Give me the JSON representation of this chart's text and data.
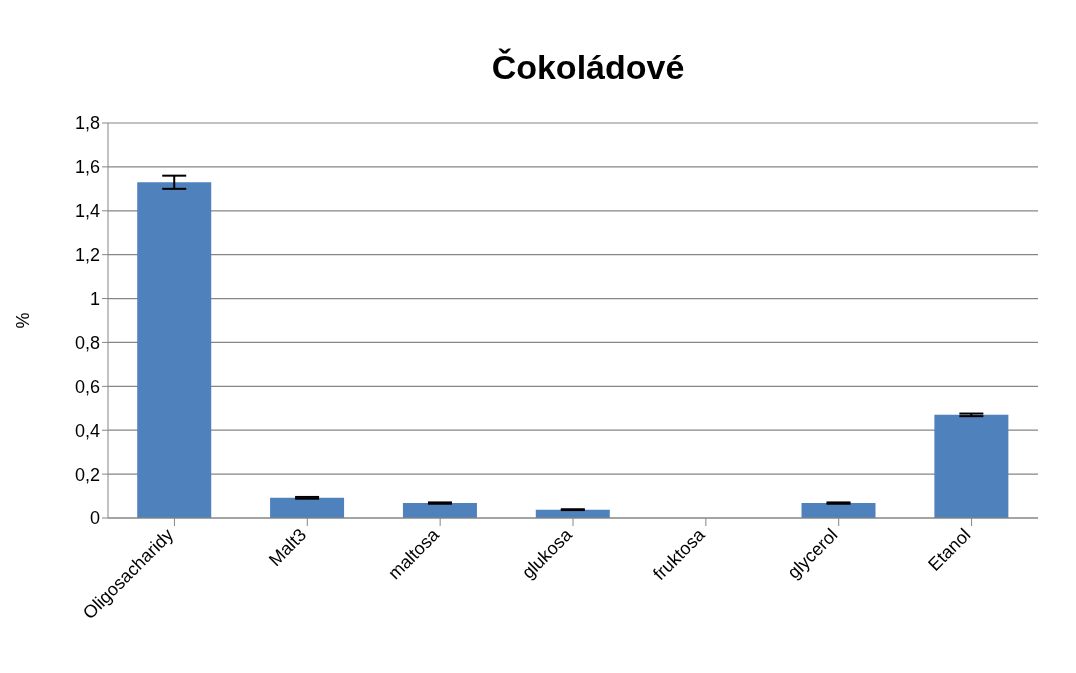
{
  "chart_data": {
    "type": "bar",
    "title": "Čokoládové",
    "ylabel": "%",
    "categories": [
      "Oligosacharidy",
      "Malt3",
      "maltosa",
      "glukosa",
      "fruktosa",
      "glycerol",
      "Etanol"
    ],
    "values": [
      1.53,
      0.092,
      0.068,
      0.038,
      0,
      0.068,
      0.47
    ],
    "errors": [
      0.03,
      0.004,
      0.003,
      0.002,
      null,
      0.003,
      0.006
    ],
    "color": "#4f81bd",
    "ylim": [
      0,
      1.8
    ],
    "yticks": [
      {
        "value": 0,
        "label": "0"
      },
      {
        "value": 0.2,
        "label": "0,2"
      },
      {
        "value": 0.4,
        "label": "0,4"
      },
      {
        "value": 0.6,
        "label": "0,6"
      },
      {
        "value": 0.8,
        "label": "0,8"
      },
      {
        "value": 1,
        "label": "1"
      },
      {
        "value": 1.2,
        "label": "1,2"
      },
      {
        "value": 1.4,
        "label": "1,4"
      },
      {
        "value": 1.6,
        "label": "1,6"
      },
      {
        "value": 1.8,
        "label": "1,8"
      }
    ],
    "grid": "y"
  }
}
